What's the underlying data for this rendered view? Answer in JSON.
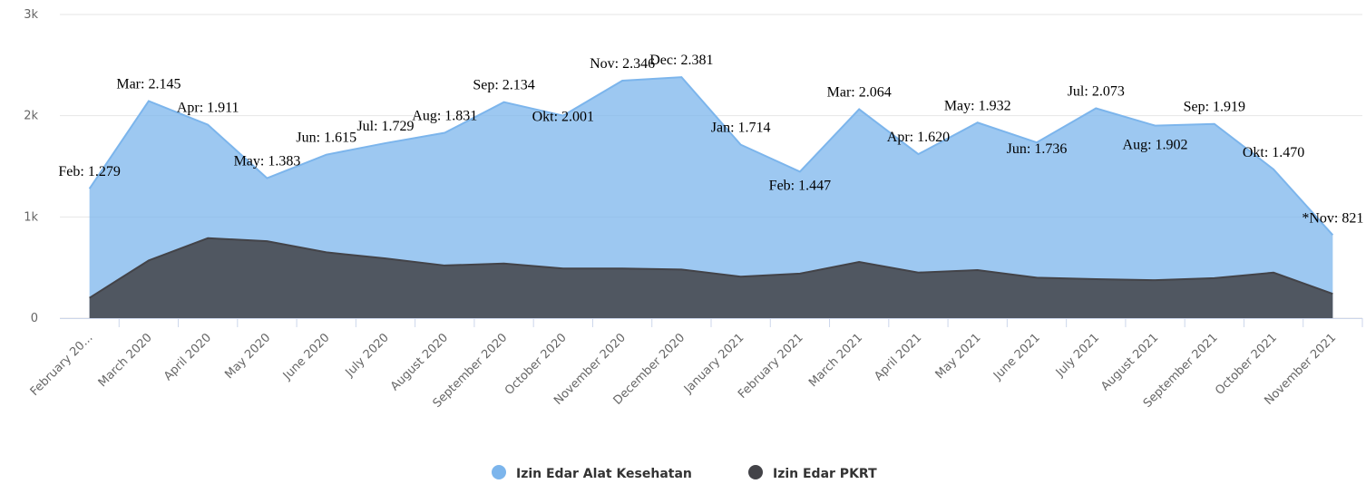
{
  "chart_data": {
    "type": "area",
    "categories": [
      "February 20...",
      "March 2020",
      "April 2020",
      "May 2020",
      "June 2020",
      "July 2020",
      "August 2020",
      "September 2020",
      "October 2020",
      "November 2020",
      "December 2020",
      "January 2021",
      "February 2021",
      "March 2021",
      "April 2021",
      "May 2021",
      "June 2021",
      "July 2021",
      "August 2021",
      "September 2021",
      "October 2021",
      "November 2021"
    ],
    "series": [
      {
        "name": "Izin Edar Alat Kesehatan",
        "color": "#7cb5ec",
        "values": [
          1279,
          2145,
          1911,
          1383,
          1615,
          1729,
          1831,
          2134,
          2001,
          2346,
          2381,
          1714,
          1447,
          2064,
          1620,
          1932,
          1736,
          2073,
          1902,
          1919,
          1470,
          821
        ],
        "value_labels": [
          "Feb: 1.279",
          "Mar: 2.145",
          "Apr: 1.911",
          "May: 1.383",
          "Jun: 1.615",
          "Jul: 1.729",
          "Aug: 1.831",
          "Sep: 2.134",
          "Okt: 2.001",
          "Nov: 2.346",
          "Dec: 2.381",
          "Jan: 1.714",
          "Feb: 1.447",
          "Mar: 2.064",
          "Apr: 1.620",
          "May: 1.932",
          "Jun: 1.736",
          "Jul: 2.073",
          "Aug: 1.902",
          "Sep: 1.919",
          "Okt: 1.470",
          "*Nov: 821"
        ]
      },
      {
        "name": "Izin Edar PKRT",
        "color": "#434348",
        "values": [
          200,
          570,
          790,
          760,
          650,
          590,
          520,
          540,
          490,
          490,
          480,
          410,
          440,
          555,
          450,
          475,
          400,
          385,
          375,
          395,
          450,
          240
        ]
      }
    ],
    "ylim": [
      0,
      3000
    ],
    "yticks": [
      0,
      {
        "value": 1000,
        "label": "1k"
      },
      {
        "value": 2000,
        "label": "2k"
      },
      {
        "value": 3000,
        "label": "3k"
      }
    ],
    "grid": true,
    "legend": "bottom"
  }
}
